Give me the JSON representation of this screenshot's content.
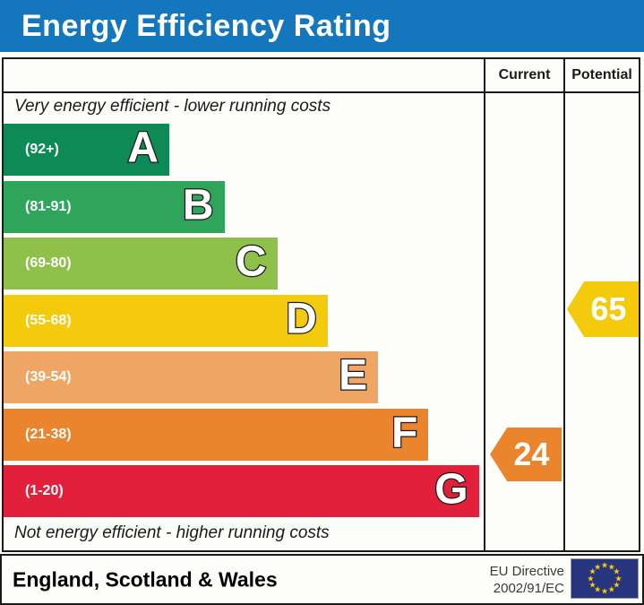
{
  "title": "Energy Efficiency Rating",
  "header": {
    "current": "Current",
    "potential": "Potential"
  },
  "notes": {
    "top": "Very energy efficient - lower running costs",
    "bottom": "Not energy efficient - higher running costs"
  },
  "chart_data": {
    "type": "bar",
    "title": "Energy Efficiency Rating",
    "scale": [
      1,
      100
    ],
    "bands": [
      {
        "letter": "A",
        "range": "(92+)",
        "min": 92,
        "max": 100,
        "color": "#0e8a57",
        "width_pct": 34.5
      },
      {
        "letter": "B",
        "range": "(81-91)",
        "min": 81,
        "max": 91,
        "color": "#2ea55b",
        "width_pct": 46
      },
      {
        "letter": "C",
        "range": "(69-80)",
        "min": 69,
        "max": 80,
        "color": "#8ec04a",
        "width_pct": 57
      },
      {
        "letter": "D",
        "range": "(55-68)",
        "min": 55,
        "max": 68,
        "color": "#f3cb0c",
        "width_pct": 67.5
      },
      {
        "letter": "E",
        "range": "(39-54)",
        "min": 39,
        "max": 54,
        "color": "#efa564",
        "width_pct": 78
      },
      {
        "letter": "F",
        "range": "(21-38)",
        "min": 21,
        "max": 38,
        "color": "#ea852d",
        "width_pct": 88.5
      },
      {
        "letter": "G",
        "range": "(1-20)",
        "min": 1,
        "max": 20,
        "color": "#e3203b",
        "width_pct": 99
      }
    ],
    "current": {
      "value": 24,
      "band": "F",
      "color": "#ea852d"
    },
    "potential": {
      "value": 65,
      "band": "D",
      "color": "#f3cb0c"
    }
  },
  "footer": {
    "region": "England, Scotland & Wales",
    "directive": [
      "EU Directive",
      "2002/91/EC"
    ],
    "eu_flag": {
      "background": "#27357e",
      "star_color": "#ffcc00",
      "star_count": 12
    }
  },
  "colors": {
    "title_bar": "#1477be",
    "border": "#1a1a1a"
  }
}
